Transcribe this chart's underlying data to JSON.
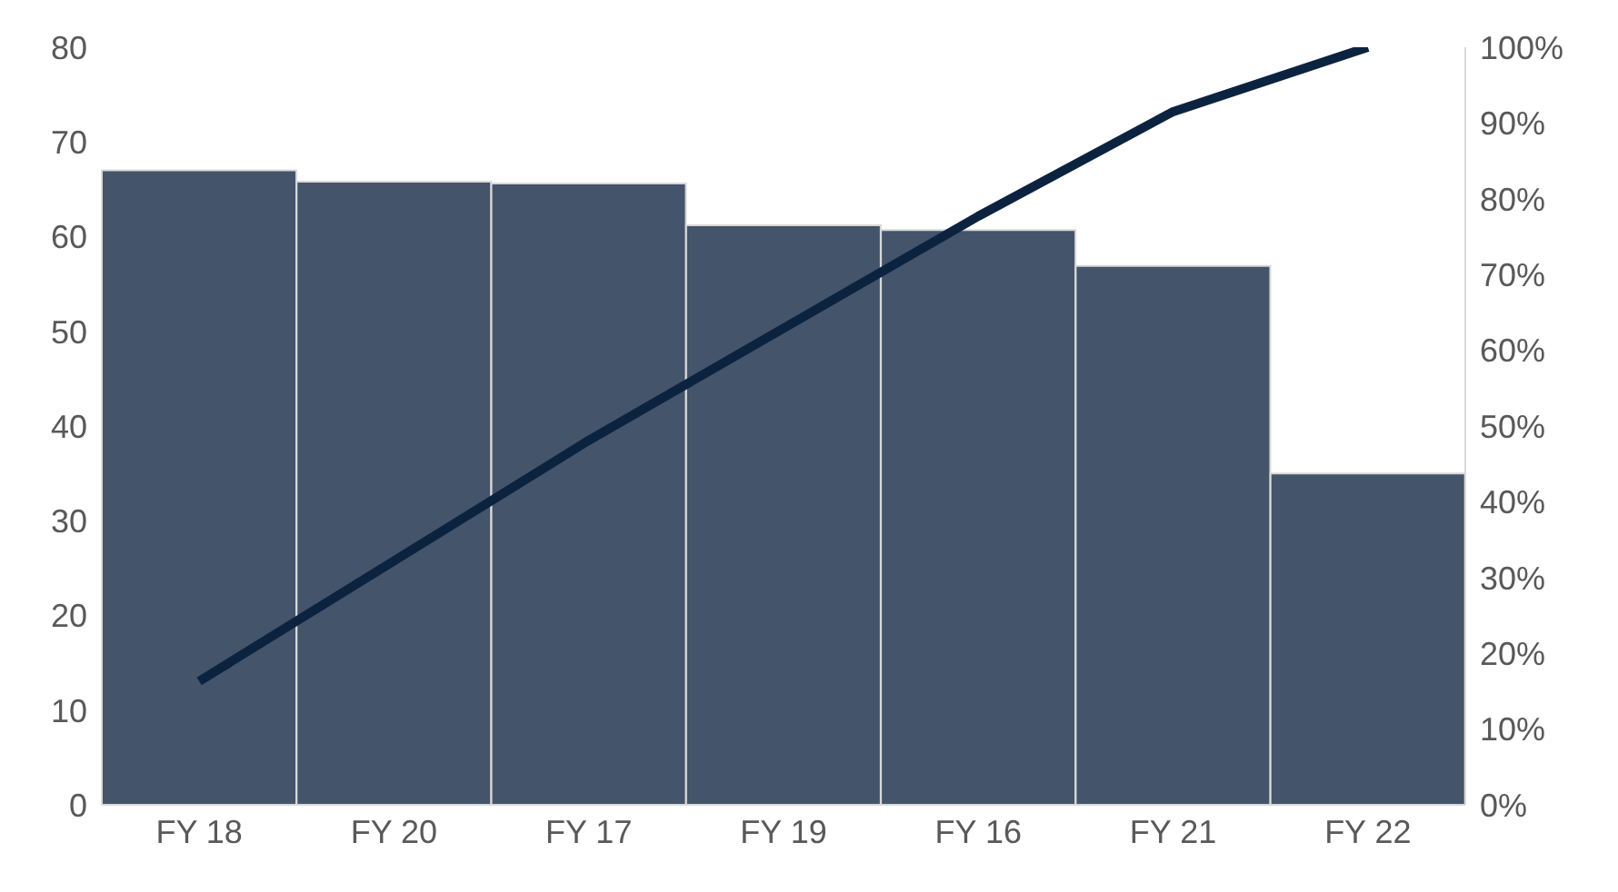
{
  "chart_data": {
    "type": "bar",
    "categories": [
      "FY 18",
      "FY 20",
      "FY 17",
      "FY 19",
      "FY 16",
      "FY 21",
      "FY 22"
    ],
    "series": [
      {
        "color": "#44546a",
        "values": [
          67,
          65.8,
          65.6,
          61.2,
          60.7,
          56.9,
          35
        ]
      },
      {
        "type": "line",
        "axis": "y2",
        "color": "#0c2340",
        "values": [
          16.3,
          32.2,
          48.1,
          62.9,
          77.7,
          91.5,
          100
        ]
      }
    ],
    "ylim": [
      0,
      80
    ],
    "yticks": [
      0,
      10,
      20,
      30,
      40,
      50,
      60,
      70,
      80
    ],
    "y2lim": [
      0,
      100
    ],
    "y2ticks": [
      {
        "value": 0,
        "label": "0%"
      },
      {
        "value": 10,
        "label": "10%"
      },
      {
        "value": 20,
        "label": "20%"
      },
      {
        "value": 30,
        "label": "30%"
      },
      {
        "value": 40,
        "label": "40%"
      },
      {
        "value": 50,
        "label": "50%"
      },
      {
        "value": 60,
        "label": "60%"
      },
      {
        "value": 70,
        "label": "70%"
      },
      {
        "value": 80,
        "label": "80%"
      },
      {
        "value": 90,
        "label": "90%"
      },
      {
        "value": 100,
        "label": "100%"
      }
    ],
    "grid": false,
    "legend": false,
    "marker": "none"
  }
}
